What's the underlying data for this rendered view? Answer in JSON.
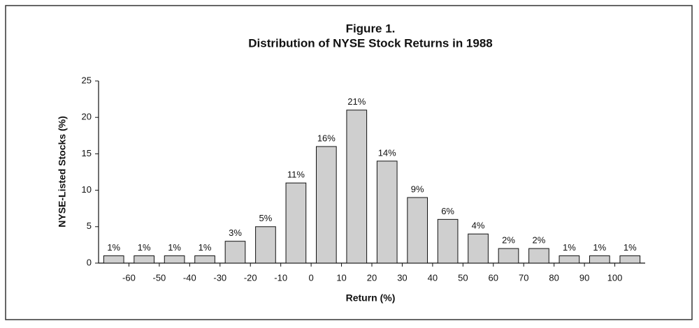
{
  "chart_data": {
    "type": "histogram",
    "title": "Figure 1.",
    "subtitle": "Distribution of NYSE Stock Returns in 1988",
    "x_label": "Return (%)",
    "y_label": "NYSE-Listed Stocks (%)",
    "bins": [
      -70,
      -60,
      -50,
      -40,
      -30,
      -20,
      -10,
      0,
      10,
      20,
      30,
      40,
      50,
      60,
      70,
      80,
      90,
      100,
      110
    ],
    "values": [
      1,
      1,
      1,
      1,
      3,
      5,
      11,
      16,
      21,
      14,
      9,
      6,
      4,
      2,
      2,
      1,
      1,
      1
    ],
    "value_labels": [
      "1%",
      "1%",
      "1%",
      "1%",
      "3%",
      "5%",
      "11%",
      "16%",
      "21%",
      "14%",
      "9%",
      "6%",
      "4%",
      "2%",
      "2%",
      "1%",
      "1%",
      "1%"
    ],
    "color": "#cfcfcf",
    "xlim": [
      -70,
      110
    ],
    "xticks": [
      -60,
      -50,
      -40,
      -30,
      -20,
      -10,
      0,
      10,
      20,
      30,
      40,
      50,
      60,
      70,
      80,
      90,
      100
    ],
    "ylim": [
      0,
      25
    ],
    "yticks": [
      0,
      5,
      10,
      15,
      20,
      25
    ]
  }
}
